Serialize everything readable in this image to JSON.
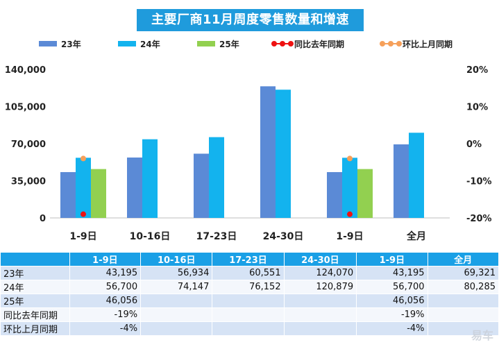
{
  "chart_data": {
    "type": "bar",
    "title": "主要厂商11月周度零售数量和增速",
    "categories": [
      "1-9日",
      "10-16日",
      "17-23日",
      "24-30日",
      "1-9日",
      "全月"
    ],
    "series": [
      {
        "name": "23年",
        "values": [
          43195,
          56934,
          60551,
          124070,
          43195,
          69321
        ],
        "color": "#5b8ad6"
      },
      {
        "name": "24年",
        "values": [
          56700,
          74147,
          76152,
          120879,
          56700,
          80285
        ],
        "color": "#13b3ee"
      },
      {
        "name": "25年",
        "values": [
          46056,
          null,
          null,
          null,
          46056,
          null
        ],
        "color": "#92d050"
      }
    ],
    "line_series": [
      {
        "name": "同比去年同期",
        "values": [
          -19,
          null,
          null,
          null,
          -19,
          null
        ],
        "unit": "%",
        "color": "#ee1111",
        "axis": "right"
      },
      {
        "name": "环比上月同期",
        "values": [
          -4,
          null,
          null,
          null,
          -4,
          null
        ],
        "unit": "%",
        "color": "#f6a05a",
        "axis": "right"
      }
    ],
    "y_left": {
      "ticks": [
        "140,000",
        "105,000",
        "70,000",
        "35,000",
        "0"
      ],
      "range": [
        0,
        140000
      ]
    },
    "y_right": {
      "ticks": [
        "20%",
        "10%",
        "0%",
        "-10%",
        "-20%"
      ],
      "range": [
        -20,
        20
      ]
    },
    "legend_position": "top",
    "grid": false
  },
  "table": {
    "header": [
      "",
      "1-9日",
      "10-16日",
      "17-23日",
      "24-30日",
      "1-9日",
      "全月"
    ],
    "rows": [
      {
        "label": "23年",
        "cells": [
          "43,195",
          "56,934",
          "60,551",
          "124,070",
          "43,195",
          "69,321"
        ]
      },
      {
        "label": "24年",
        "cells": [
          "56,700",
          "74,147",
          "76,152",
          "120,879",
          "56,700",
          "80,285"
        ]
      },
      {
        "label": "25年",
        "cells": [
          "46,056",
          "",
          "",
          "",
          "46,056",
          ""
        ]
      },
      {
        "label": "同比去年同期",
        "cells": [
          "-19%",
          "",
          "",
          "",
          "-19%",
          ""
        ]
      },
      {
        "label": "环比上月同期",
        "cells": [
          "-4%",
          "",
          "",
          "",
          "-4%",
          ""
        ]
      }
    ]
  },
  "watermark": "易车"
}
